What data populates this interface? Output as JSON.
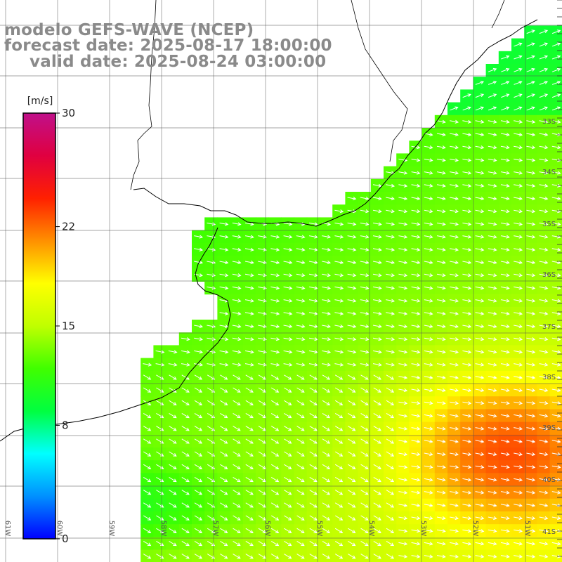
{
  "header": {
    "model_line": "modelo GEFS-WAVE (NCEP)",
    "forecast_line": "forecast date: 2025-08-17 18:00:00",
    "valid_line": "valid date: 2025-08-24 03:00:00"
  },
  "colorbar": {
    "unit": "[m/s]",
    "ticks": [
      {
        "value": 30,
        "label": "30"
      },
      {
        "value": 22,
        "label": "22"
      },
      {
        "value": 15,
        "label": "15"
      },
      {
        "value": 8,
        "label": "8"
      },
      {
        "value": 0,
        "label": "0"
      }
    ],
    "range": [
      0,
      30
    ],
    "colors": [
      "#0000ff",
      "#0090ff",
      "#00ffff",
      "#00ff40",
      "#40ff00",
      "#c0ff00",
      "#ffff00",
      "#ff9000",
      "#ff2000",
      "#e00040",
      "#c0108a"
    ]
  },
  "axes": {
    "lat_labels": [
      "33S",
      "34S",
      "35S",
      "36S",
      "37S",
      "38S",
      "39S",
      "40S",
      "41S"
    ],
    "lon_labels": [
      "61W",
      "60W",
      "59W",
      "58W",
      "57W",
      "56W",
      "55W",
      "54W",
      "53W",
      "52W",
      "51W"
    ]
  },
  "field": {
    "variable": "wind speed",
    "description": "gridded wind speed (m/s) with white direction arrows over ocean",
    "dominant_direction": "towards east-southeast"
  }
}
